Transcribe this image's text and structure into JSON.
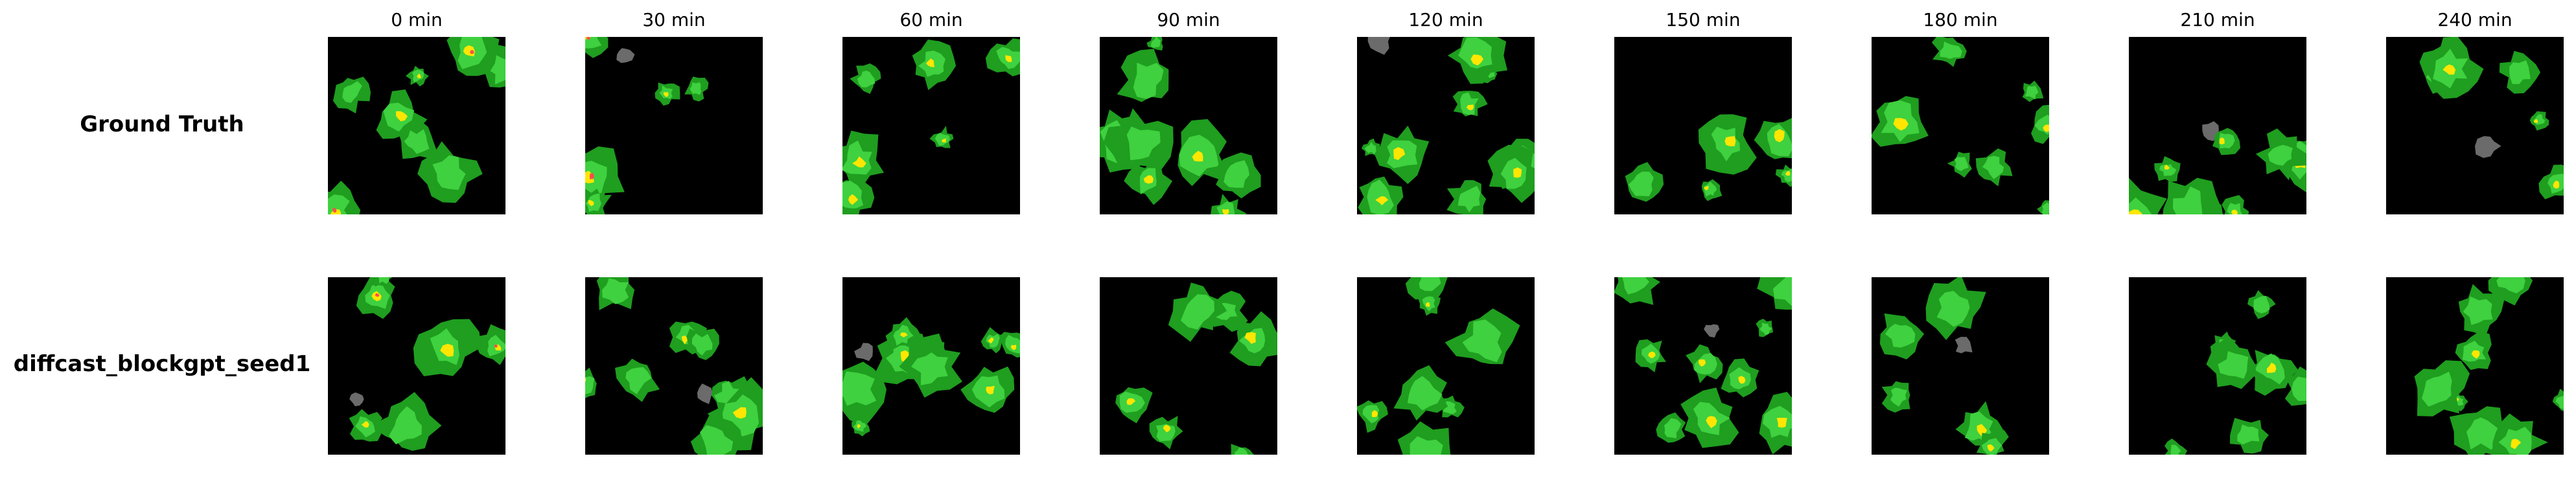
{
  "figure": {
    "column_titles": [
      "0 min",
      "30 min",
      "60 min",
      "90 min",
      "120 min",
      "150 min",
      "180 min",
      "210 min",
      "240 min"
    ],
    "rows": [
      {
        "label": "Ground Truth"
      },
      {
        "label": "diffcast_blockgpt_seed1"
      }
    ],
    "colors": {
      "background": "#000000",
      "light_rain": "#1f9e1f",
      "moderate_rain": "#3fd13f",
      "heavy_rain": "#ffe600",
      "extreme_rain": "#ff4d4d",
      "clutter": "#6b6b6b"
    }
  }
}
